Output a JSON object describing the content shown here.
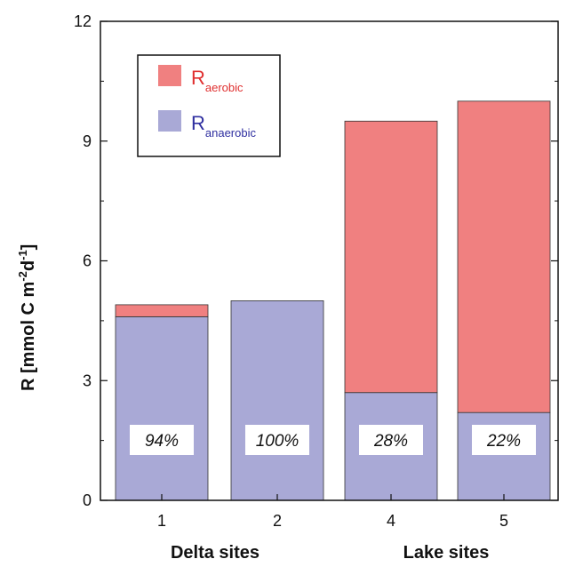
{
  "chart_data": {
    "type": "bar",
    "stacked": true,
    "categories": [
      "1",
      "2",
      "4",
      "5"
    ],
    "series": [
      {
        "name": "R_anaerobic",
        "label_main": "R",
        "label_sub": "anaerobic",
        "color": "#a9a9d6",
        "text_color": "#2f2fa0",
        "values": [
          4.6,
          5.0,
          2.7,
          2.2
        ]
      },
      {
        "name": "R_aerobic",
        "label_main": "R",
        "label_sub": "aerobic",
        "color": "#f08080",
        "text_color": "#e03030",
        "values": [
          0.3,
          0.0,
          6.8,
          7.8
        ]
      }
    ],
    "annotations": [
      "94%",
      "100%",
      "28%",
      "22%"
    ],
    "groups": [
      "Delta sites",
      "Lake sites"
    ],
    "ylabel": {
      "main": "R  [mmol C m",
      "sup1": "-2",
      "mid": "d",
      "sup2": "-1",
      "end": "]"
    },
    "yticks": [
      0,
      3,
      6,
      9,
      12
    ],
    "ylim": [
      0,
      12
    ],
    "legend_position": "top-left",
    "grid": false
  }
}
